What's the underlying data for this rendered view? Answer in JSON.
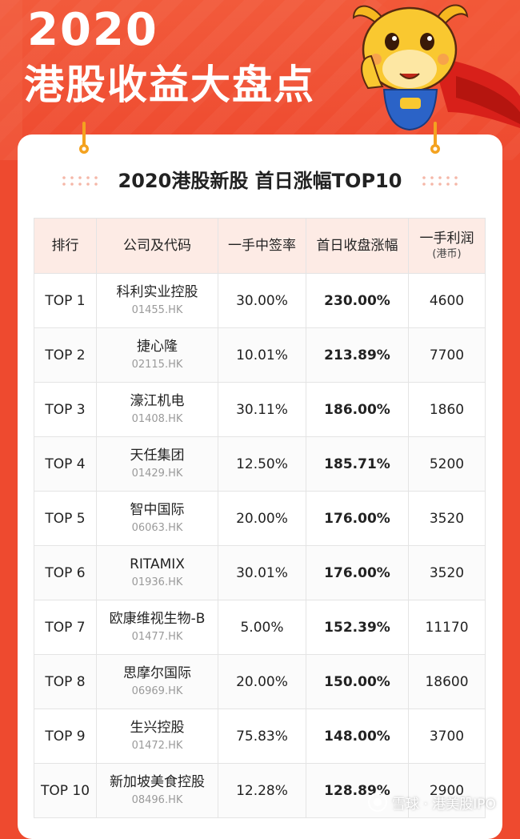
{
  "hero": {
    "year": "2020",
    "title": "港股收益大盘点"
  },
  "card": {
    "title": "2020港股新股 首日涨幅TOP10"
  },
  "table": {
    "headers": {
      "rank": "排行",
      "company": "公司及代码",
      "win_rate": "一手中签率",
      "first_day_gain": "首日收盘涨幅",
      "profit": "一手利润",
      "profit_unit": "(港币)"
    },
    "rows": [
      {
        "rank": "TOP 1",
        "name": "科利实业控股",
        "code": "01455.HK",
        "win_rate": "30.00%",
        "gain": "230.00%",
        "profit": "4600"
      },
      {
        "rank": "TOP 2",
        "name": "捷心隆",
        "code": "02115.HK",
        "win_rate": "10.01%",
        "gain": "213.89%",
        "profit": "7700"
      },
      {
        "rank": "TOP 3",
        "name": "濠江机电",
        "code": "01408.HK",
        "win_rate": "30.11%",
        "gain": "186.00%",
        "profit": "1860"
      },
      {
        "rank": "TOP 4",
        "name": "天任集团",
        "code": "01429.HK",
        "win_rate": "12.50%",
        "gain": "185.71%",
        "profit": "5200"
      },
      {
        "rank": "TOP 5",
        "name": "智中国际",
        "code": "06063.HK",
        "win_rate": "20.00%",
        "gain": "176.00%",
        "profit": "3520"
      },
      {
        "rank": "TOP 6",
        "name": "RITAMIX",
        "code": "01936.HK",
        "win_rate": "30.01%",
        "gain": "176.00%",
        "profit": "3520"
      },
      {
        "rank": "TOP 7",
        "name": "欧康维视生物-B",
        "code": "01477.HK",
        "win_rate": "5.00%",
        "gain": "152.39%",
        "profit": "11170"
      },
      {
        "rank": "TOP 8",
        "name": "思摩尔国际",
        "code": "06969.HK",
        "win_rate": "20.00%",
        "gain": "150.00%",
        "profit": "18600"
      },
      {
        "rank": "TOP 9",
        "name": "生兴控股",
        "code": "01472.HK",
        "win_rate": "75.83%",
        "gain": "148.00%",
        "profit": "3700"
      },
      {
        "rank": "TOP 10",
        "name": "新加坡美食控股",
        "code": "08496.HK",
        "win_rate": "12.28%",
        "gain": "128.89%",
        "profit": "2900"
      }
    ]
  },
  "watermark": {
    "text": "雪球 · 港美股IPO"
  },
  "colors": {
    "background": "#ee4a2f",
    "header_fill": "#fdebe5",
    "gain_text": "#e2452f",
    "pin": "#f4a21f"
  }
}
